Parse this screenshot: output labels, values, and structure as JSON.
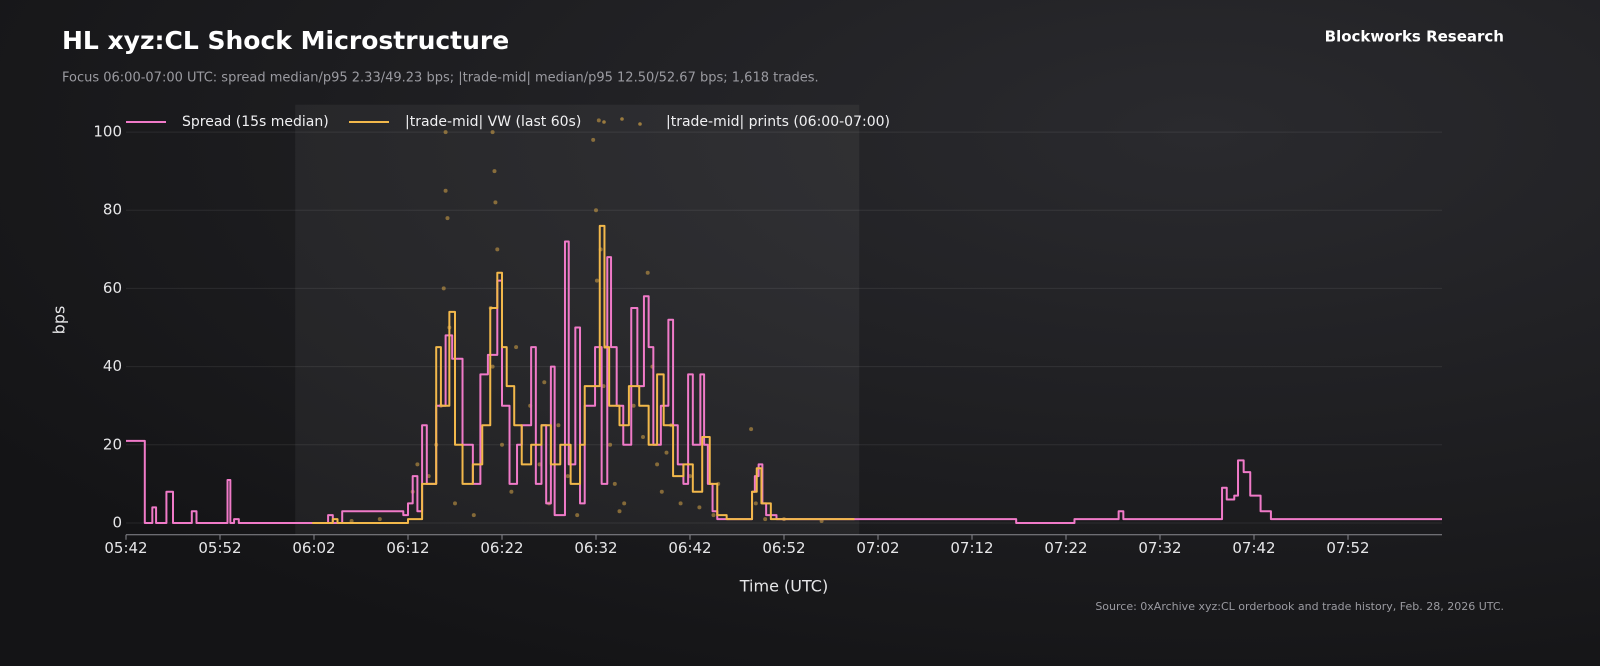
{
  "chart_data": {
    "type": "line",
    "title": "HL xyz:CL Shock Microstructure",
    "subtitle": "Focus 06:00-07:00 UTC: spread median/p95 2.33/49.23 bps; |trade-mid| median/p95 12.50/52.67 bps; 1,618 trades.",
    "brand": "Blockworks Research",
    "source": "Source: 0xArchive xyz:CL orderbook and trade history, Feb. 28, 2026 UTC.",
    "x_label": "Time (UTC)",
    "y_label": "bps",
    "xlim": [
      342,
      482
    ],
    "ylim": [
      -3,
      107
    ],
    "xticks": [
      {
        "value": 342,
        "label": "05:42"
      },
      {
        "value": 352,
        "label": "05:52"
      },
      {
        "value": 362,
        "label": "06:02"
      },
      {
        "value": 372,
        "label": "06:12"
      },
      {
        "value": 382,
        "label": "06:22"
      },
      {
        "value": 392,
        "label": "06:32"
      },
      {
        "value": 402,
        "label": "06:42"
      },
      {
        "value": 412,
        "label": "06:52"
      },
      {
        "value": 422,
        "label": "07:02"
      },
      {
        "value": 432,
        "label": "07:12"
      },
      {
        "value": 442,
        "label": "07:22"
      },
      {
        "value": 452,
        "label": "07:32"
      },
      {
        "value": 462,
        "label": "07:42"
      },
      {
        "value": 472,
        "label": "07:52"
      }
    ],
    "yticks": [
      0,
      20,
      40,
      60,
      80,
      100
    ],
    "grid": true,
    "focus": [
      360,
      420
    ],
    "legend": "top-left",
    "series": [
      {
        "name": "Spread (15s median)",
        "color": "#f07ac8",
        "step": true,
        "x": [
          342,
          344,
          344.8,
          345.2,
          346.3,
          347,
          349,
          349.5,
          352.8,
          353.1,
          353.5,
          354,
          363.5,
          364,
          365,
          371.5,
          372,
          372.5,
          373,
          373.5,
          374,
          375,
          376,
          376.7,
          377.8,
          378.9,
          379.7,
          380.5,
          381.5,
          382,
          382.8,
          383.6,
          384.1,
          385.1,
          385.6,
          386.2,
          386.7,
          387.2,
          387.6,
          388.7,
          389.1,
          389.8,
          390.3,
          390.8,
          391.9,
          392.6,
          393.2,
          393.6,
          394.2,
          394.9,
          395.75,
          396.4,
          397.1,
          397.6,
          398.1,
          398.9,
          399.7,
          400.2,
          400.7,
          401.3,
          401.8,
          402.3,
          403.1,
          403.5,
          403.9,
          404.4,
          404.9,
          408.6,
          408.9,
          409.3,
          409.7,
          410.1,
          411.2,
          436.7,
          442.9,
          447.6,
          448.1,
          458.6,
          459.1,
          459.9,
          460.3,
          460.9,
          461.6,
          462.7,
          463.8,
          482
        ],
        "values": [
          21,
          0,
          4,
          0,
          8,
          0,
          3,
          0,
          11,
          0,
          1,
          0,
          2,
          0,
          3,
          2,
          5,
          12,
          3,
          25,
          10,
          30,
          48,
          42,
          20,
          10,
          38,
          43,
          62,
          30,
          10,
          20,
          25,
          45,
          10,
          25,
          5,
          40,
          2,
          72,
          15,
          50,
          5,
          30,
          45,
          10,
          68,
          45,
          30,
          20,
          55,
          35,
          58,
          45,
          20,
          30,
          52,
          25,
          15,
          10,
          38,
          20,
          38,
          20,
          10,
          3,
          1,
          8,
          12,
          15,
          5,
          2,
          1,
          0,
          1,
          3,
          1,
          9,
          6,
          7,
          16,
          13,
          7,
          3,
          1,
          1
        ]
      },
      {
        "name": "|trade-mid| VW (last 60s)",
        "color": "#f2b84b",
        "step": true,
        "x": [
          361.8,
          364,
          364.5,
          372,
          373.5,
          375,
          375.5,
          376.4,
          377,
          377.8,
          378.9,
          379.9,
          380.75,
          381.5,
          382,
          382.5,
          383.3,
          384.1,
          385.1,
          386.2,
          387.2,
          388.2,
          389.3,
          390.3,
          390.8,
          392.4,
          392.9,
          393.4,
          394.5,
          395.5,
          396.6,
          397.6,
          398.5,
          399.2,
          400.2,
          401.3,
          402.3,
          403.3,
          404.1,
          404.9,
          405.9,
          408.6,
          409.1,
          409.6,
          410.6,
          419.5
        ],
        "values": [
          0,
          1,
          0,
          1,
          10,
          45,
          30,
          54,
          20,
          10,
          15,
          25,
          55,
          64,
          45,
          35,
          25,
          15,
          20,
          25,
          15,
          20,
          10,
          20,
          35,
          76,
          45,
          30,
          25,
          35,
          30,
          20,
          38,
          25,
          12,
          15,
          8,
          22,
          10,
          2,
          1,
          8,
          14,
          5,
          1,
          1
        ]
      },
      {
        "name": "|trade-mid| prints (06:00-07:00)",
        "color": "#e6b04a",
        "kind": "scatter",
        "x": [
          376,
          376,
          376.2,
          375.8,
          376.4,
          375.5,
          375,
          374.2,
          377,
          381,
          381.2,
          381.3,
          381.5,
          380.8,
          381,
          382,
          383,
          385,
          386,
          387,
          388,
          389,
          391.7,
          392,
          392.3,
          392.5,
          392.1,
          393,
          392.8,
          393.5,
          394,
          394.5,
          396,
          397,
          397.5,
          398,
          398.5,
          399,
          400,
          401,
          402,
          403,
          404.5,
          405,
          408.5,
          409,
          410,
          372.5,
          373,
          379,
          383.5,
          386.5,
          390,
          395,
          399.5,
          366,
          369,
          412,
          416
        ],
        "values": [
          100,
          85,
          78,
          60,
          50,
          30,
          20,
          12,
          5,
          100,
          90,
          82,
          70,
          55,
          40,
          20,
          8,
          30,
          15,
          5,
          25,
          12,
          98,
          80,
          103,
          70,
          62,
          45,
          35,
          20,
          10,
          3,
          30,
          22,
          64,
          40,
          15,
          8,
          25,
          5,
          12,
          4,
          2,
          10,
          24,
          5,
          1,
          8,
          15,
          2,
          45,
          36,
          2,
          5,
          18,
          0.5,
          1,
          1,
          0.5
        ]
      }
    ]
  }
}
